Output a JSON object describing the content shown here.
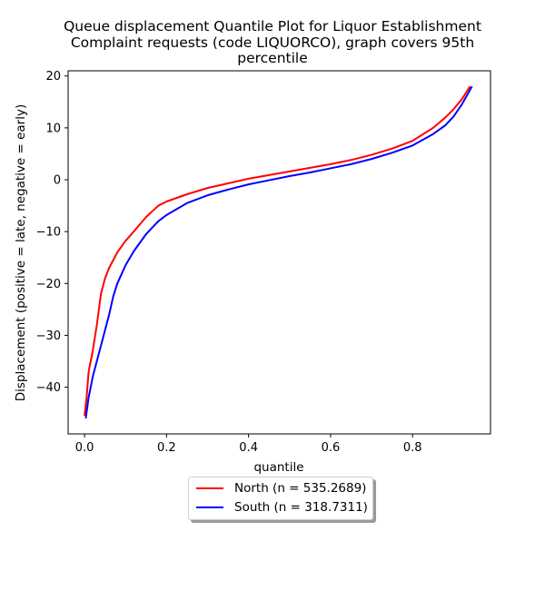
{
  "chart_data": {
    "type": "line",
    "title_lines": [
      "Queue displacement Quantile Plot for Liquor Establishment",
      "Complaint  requests (code LIQUORCO), graph covers 95th",
      "percentile"
    ],
    "xlabel": "quantile",
    "ylabel": "Displacement (positive = late, negative = early)",
    "xlim": [
      -0.04,
      0.99
    ],
    "ylim": [
      -49,
      21
    ],
    "xticks": [
      0.0,
      0.2,
      0.4,
      0.6,
      0.8
    ],
    "xtick_labels": [
      "0.0",
      "0.2",
      "0.4",
      "0.6",
      "0.8"
    ],
    "yticks": [
      20,
      10,
      0,
      -10,
      -20,
      -30,
      -40
    ],
    "ytick_labels": [
      "20",
      "10",
      "0",
      "−10",
      "−20",
      "−30",
      "−40"
    ],
    "grid": false,
    "legend_position": "below-center",
    "series": [
      {
        "name": "North (n = 535.2689)",
        "color": "#ff0000",
        "x": [
          0.0,
          0.005,
          0.01,
          0.02,
          0.03,
          0.04,
          0.05,
          0.06,
          0.08,
          0.1,
          0.12,
          0.15,
          0.18,
          0.2,
          0.25,
          0.3,
          0.35,
          0.4,
          0.45,
          0.5,
          0.55,
          0.6,
          0.65,
          0.7,
          0.75,
          0.8,
          0.85,
          0.88,
          0.9,
          0.92,
          0.94
        ],
        "y": [
          -45.5,
          -42,
          -37,
          -33,
          -28,
          -22,
          -19,
          -17,
          -14,
          -11.8,
          -10,
          -7.2,
          -5,
          -4.2,
          -2.8,
          -1.6,
          -0.7,
          0.2,
          0.9,
          1.6,
          2.3,
          3.0,
          3.8,
          4.8,
          6.0,
          7.5,
          10.0,
          12.0,
          13.6,
          15.5,
          18.0
        ]
      },
      {
        "name": "South (n = 318.7311)",
        "color": "#0000ff",
        "x": [
          0.003,
          0.01,
          0.02,
          0.03,
          0.04,
          0.05,
          0.06,
          0.07,
          0.08,
          0.1,
          0.12,
          0.15,
          0.18,
          0.2,
          0.25,
          0.3,
          0.35,
          0.4,
          0.45,
          0.5,
          0.55,
          0.6,
          0.65,
          0.7,
          0.75,
          0.8,
          0.85,
          0.88,
          0.9,
          0.92,
          0.945
        ],
        "y": [
          -46,
          -42,
          -38,
          -35,
          -32,
          -29,
          -26,
          -22.5,
          -20,
          -16.5,
          -13.8,
          -10.5,
          -8,
          -6.8,
          -4.5,
          -3.0,
          -1.9,
          -0.9,
          -0.1,
          0.7,
          1.4,
          2.2,
          3.0,
          4.0,
          5.2,
          6.6,
          8.8,
          10.5,
          12.2,
          14.5,
          18.0
        ]
      }
    ]
  }
}
